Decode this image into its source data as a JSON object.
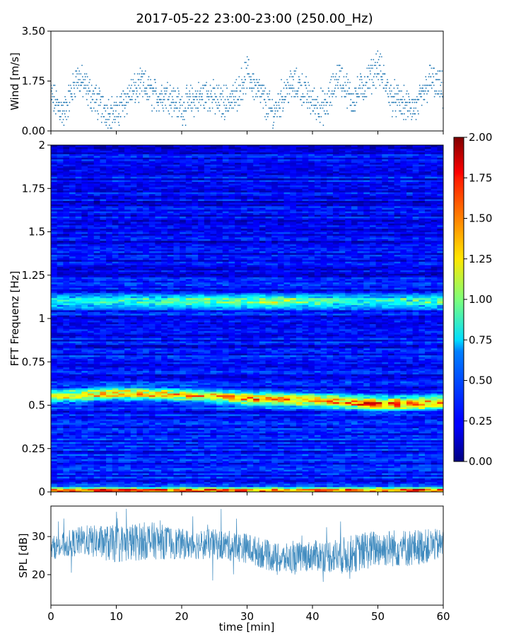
{
  "title": "2017-05-22 23:00-23:00 (250.00_Hz)",
  "chart_data": [
    {
      "type": "scatter",
      "ylabel": "Wind [m/s]",
      "xlim": [
        0,
        60
      ],
      "ylim": [
        0,
        3.5
      ],
      "yticks": [
        "0.00",
        "1.75",
        "3.50"
      ],
      "marker_color": "#1f77b4",
      "series": [
        {
          "x": [
            0,
            2,
            4,
            6,
            8,
            10,
            12,
            14,
            16,
            18,
            20,
            22,
            24,
            26,
            28,
            30,
            32,
            34,
            36,
            38,
            40,
            42,
            44,
            46,
            48,
            50,
            52,
            54,
            56,
            58,
            60
          ],
          "y": [
            1.2,
            0.6,
            1.9,
            1.3,
            0.8,
            0.6,
            1.3,
            1.6,
            1.2,
            1.3,
            0.8,
            1.1,
            1.3,
            1.0,
            1.1,
            2.0,
            1.3,
            0.6,
            1.5,
            1.6,
            1.0,
            0.8,
            2.0,
            1.1,
            1.6,
            2.3,
            1.2,
            0.9,
            0.8,
            1.8,
            1.4
          ]
        }
      ]
    },
    {
      "type": "heatmap",
      "ylabel": "FFT Frequenz [Hz]",
      "xlim": [
        0,
        60
      ],
      "ylim": [
        0,
        2
      ],
      "yticks": [
        "0",
        "0.25",
        "0.5",
        "0.75",
        "1",
        "1.25",
        "1.5",
        "1.75",
        "2"
      ],
      "colormap": "jet",
      "colorbar": {
        "min": 0,
        "max": 2,
        "ticks": [
          "0.00",
          "0.25",
          "0.50",
          "0.75",
          "1.00",
          "1.25",
          "1.50",
          "1.75",
          "2.00"
        ]
      },
      "bands": [
        {
          "freq_hz": 0.53,
          "x": [
            0,
            10,
            20,
            30,
            40,
            50,
            60
          ],
          "freq_hz_track": [
            0.55,
            0.57,
            0.56,
            0.54,
            0.53,
            0.51,
            0.52
          ],
          "level": [
            1.0,
            1.2,
            1.1,
            1.3,
            1.2,
            1.5,
            1.3
          ]
        },
        {
          "freq_hz": 1.1,
          "x": [
            0,
            20,
            35,
            45,
            60
          ],
          "level": [
            0.6,
            0.7,
            0.9,
            0.6,
            0.7
          ]
        },
        {
          "freq_hz": 0.01,
          "x": [
            0,
            20,
            40,
            60
          ],
          "level": [
            1.4,
            1.5,
            1.3,
            1.5
          ]
        }
      ],
      "background_level": 0.3
    },
    {
      "type": "line",
      "xlabel": "time [min]",
      "ylabel": "SPL [dB]",
      "xlim": [
        0,
        60
      ],
      "ylim": [
        12,
        38
      ],
      "yticks": [
        "20",
        "30"
      ],
      "xticks": [
        "0",
        "10",
        "20",
        "30",
        "40",
        "50",
        "60"
      ],
      "line_color": "#1f77b4",
      "series": [
        {
          "x": [
            0,
            5,
            10,
            15,
            20,
            25,
            30,
            35,
            40,
            45,
            50,
            55,
            60
          ],
          "y": [
            27,
            29,
            28,
            29,
            28,
            28,
            27,
            24,
            25,
            25,
            27,
            27,
            28
          ],
          "spread": [
            3,
            4,
            5,
            5,
            4,
            4,
            4,
            4,
            4,
            5,
            5,
            5,
            4
          ]
        }
      ]
    }
  ]
}
